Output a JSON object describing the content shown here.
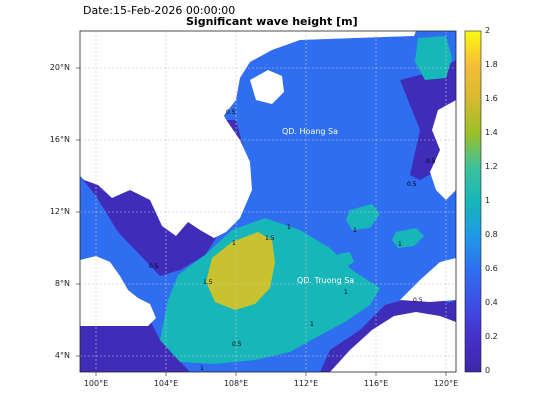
{
  "header": {
    "date_label": "Date:15-Feb-2026 00:00:00",
    "title": "Significant wave height [m]"
  },
  "map": {
    "lat_ticks": [
      "20°N",
      "16°N",
      "12°N",
      "8°N",
      "4°N"
    ],
    "lon_ticks": [
      "100°E",
      "104°E",
      "108°E",
      "112°E",
      "116°E",
      "120°E"
    ],
    "place_labels": [
      "QD. Hoang Sa",
      "QD. Truong Sa"
    ],
    "contour_labels": [
      "1",
      "1.5",
      "0.5",
      "1",
      "1.5",
      "0.5",
      "1",
      "0.5",
      "1",
      "1",
      "0.5",
      "1",
      "0.5",
      "1",
      "0.5"
    ],
    "colors": {
      "land": "#ffffff",
      "lowest": "#3f2cb8",
      "low": "#2f6ef0",
      "mid": "#17b6b8",
      "high": "#c9c230",
      "grid": "#c8c8c8"
    }
  },
  "colorbar": {
    "ticks": [
      "2",
      "1.8",
      "1.6",
      "1.4",
      "1.2",
      "1",
      "0.8",
      "0.6",
      "0.4",
      "0.2",
      "0"
    ],
    "stops": [
      "#f9fb0e",
      "#f5bd38",
      "#d6ba2f",
      "#9bbf2a",
      "#3ec09a",
      "#17b6b8",
      "#1e9ae6",
      "#2f6ef0",
      "#3d4fe6",
      "#4630c8",
      "#3e26a8"
    ]
  }
}
